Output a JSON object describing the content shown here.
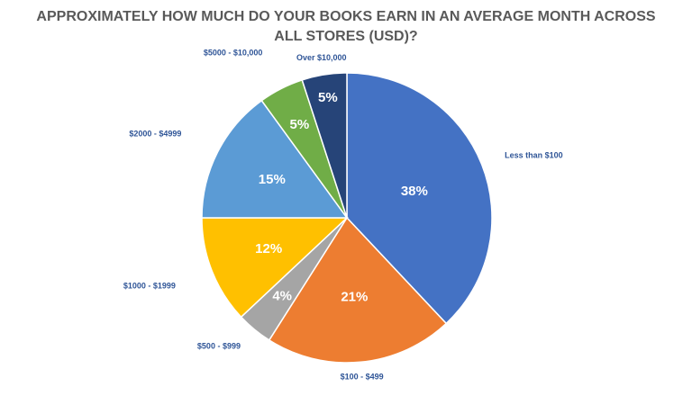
{
  "chart_data": {
    "type": "pie",
    "title": "APPROXIMATELY HOW MUCH DO YOUR BOOKS EARN IN AN AVERAGE MONTH ACROSS ALL STORES (USD)?",
    "categories": [
      "Less than $100",
      "$100 - $499",
      "$500 - $999",
      "$1000 - $1999",
      "$2000 - $4999",
      "$5000 - $10,000",
      "Over $10,000"
    ],
    "values": [
      38,
      21,
      4,
      12,
      15,
      5,
      5
    ],
    "value_labels": [
      "38%",
      "21%",
      "4%",
      "12%",
      "15%",
      "5%",
      "5%"
    ],
    "colors": [
      "#4472C4",
      "#ED7D31",
      "#A5A5A5",
      "#FFC000",
      "#5B9BD5",
      "#70AD47",
      "#264478"
    ],
    "category_label_color": "#2F5597",
    "legend": "none",
    "start": "top",
    "direction": "clockwise"
  }
}
